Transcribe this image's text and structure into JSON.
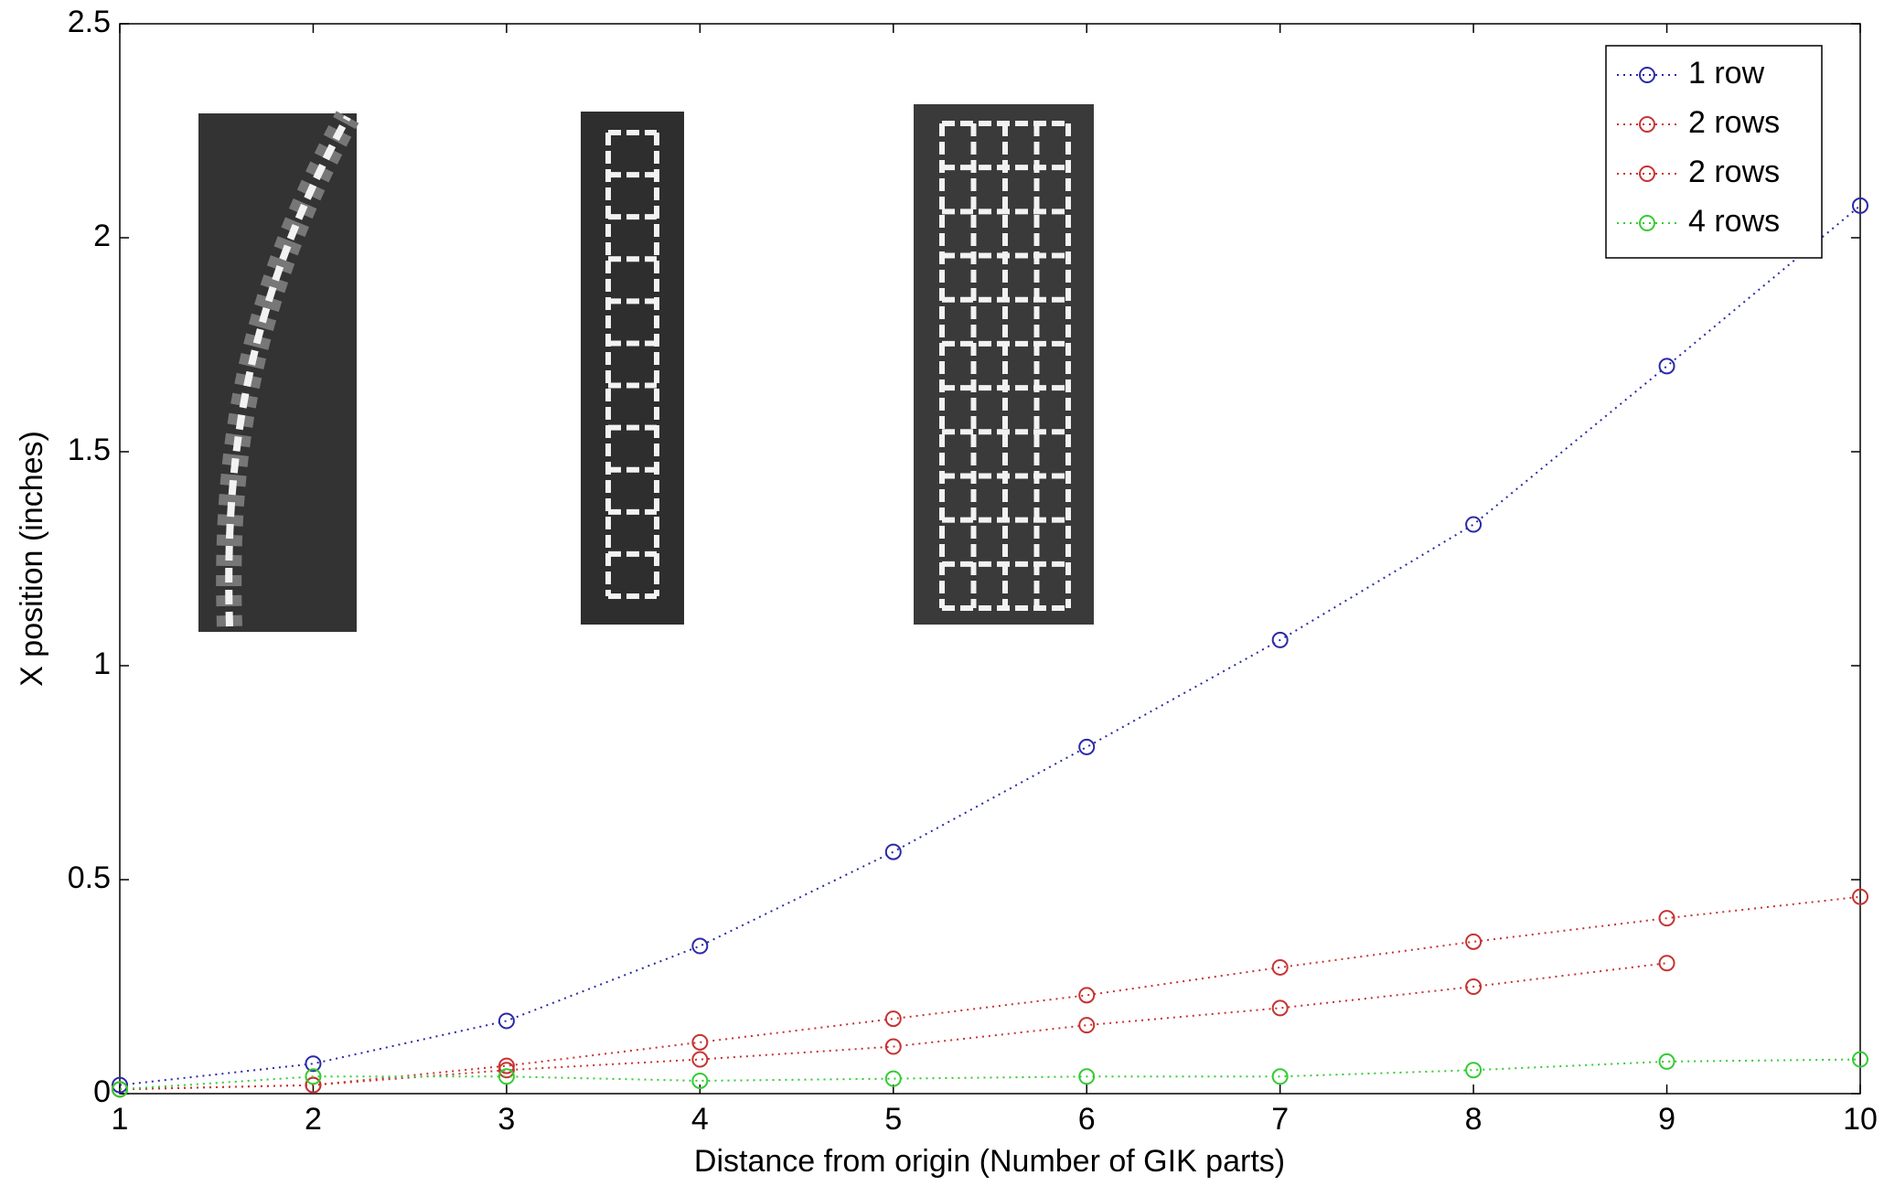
{
  "chart_data": {
    "type": "line",
    "x_label": "Distance from origin (Number of GIK parts)",
    "y_label": "X position (inches)",
    "x": [
      1,
      2,
      3,
      4,
      5,
      6,
      7,
      8,
      9,
      10
    ],
    "series": [
      {
        "name": "1 row",
        "color": "#2a2aa8",
        "values": [
          0.02,
          0.07,
          0.17,
          0.345,
          0.565,
          0.81,
          1.06,
          1.33,
          1.7,
          2.075
        ]
      },
      {
        "name": "2 rows",
        "color": "#c83232",
        "values": [
          0.01,
          0.02,
          0.065,
          0.12,
          0.175,
          0.23,
          0.295,
          0.355,
          0.41,
          0.46
        ]
      },
      {
        "name": "2 rows",
        "color": "#c83232",
        "values": [
          0.01,
          0.02,
          0.055,
          0.08,
          0.11,
          0.16,
          0.2,
          0.25,
          0.305,
          null
        ]
      },
      {
        "name": "4 rows",
        "color": "#33cc33",
        "values": [
          0.01,
          0.04,
          0.04,
          0.03,
          0.035,
          0.04,
          0.04,
          0.055,
          0.075,
          0.08
        ]
      }
    ],
    "xlim": [
      1,
      10
    ],
    "xticks": [
      1,
      2,
      3,
      4,
      5,
      6,
      7,
      8,
      9,
      10
    ],
    "ylim": [
      0,
      2.5
    ],
    "yticks": [
      0,
      0.5,
      1,
      1.5,
      2,
      2.5
    ],
    "grid": false,
    "legend": "top-right"
  }
}
